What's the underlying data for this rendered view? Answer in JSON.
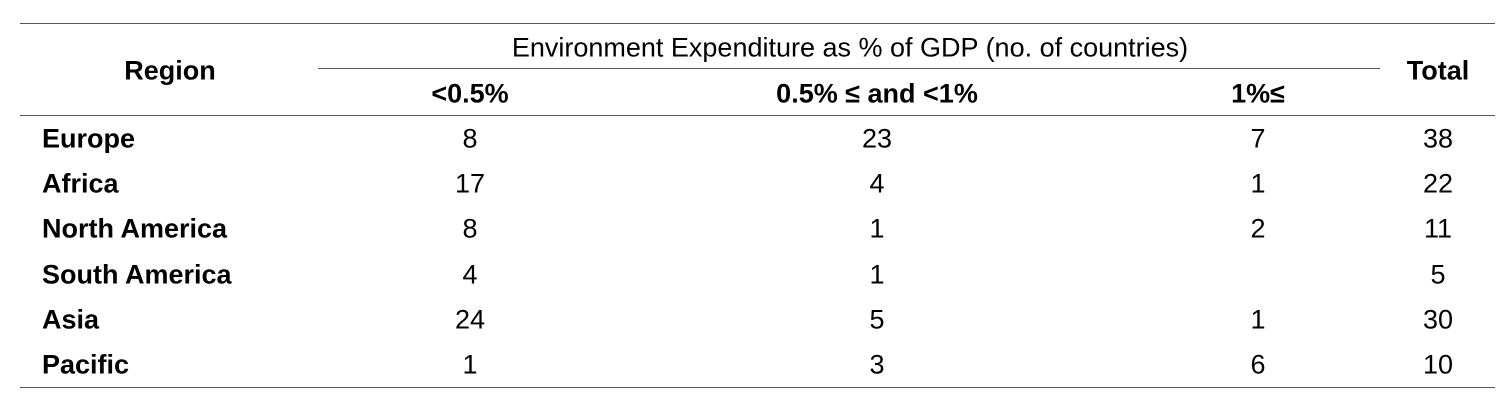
{
  "table": {
    "header": {
      "region": "Region",
      "group": "Environment Expenditure as % of GDP (no. of countries)",
      "columns": [
        "<0.5%",
        "0.5% ≤ and <1%",
        "1%≤"
      ],
      "total": "Total"
    },
    "rows": [
      [
        "Europe",
        8,
        23,
        7,
        38
      ],
      [
        "Africa",
        17,
        4,
        1,
        22
      ],
      [
        "North America",
        8,
        1,
        2,
        11
      ],
      [
        "South America",
        4,
        1,
        null,
        5
      ],
      [
        "Asia",
        24,
        5,
        1,
        30
      ],
      [
        "Pacific",
        1,
        3,
        6,
        10
      ]
    ]
  }
}
